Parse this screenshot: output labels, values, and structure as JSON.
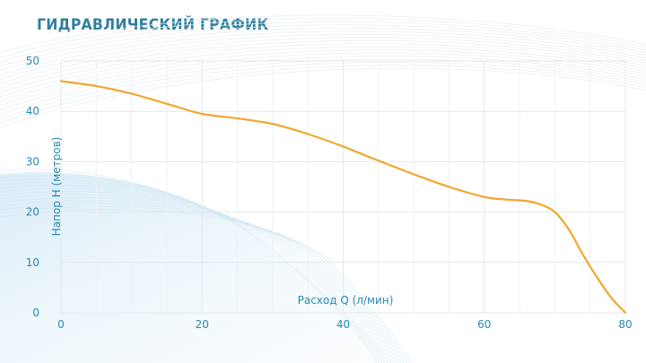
{
  "chart_data": {
    "type": "line",
    "title": "ГИДРАВЛИЧЕСКИЙ ГРАФИК",
    "xlabel": "Расход Q (л/мин)",
    "ylabel": "Напор Н (метров)",
    "xlim": [
      0,
      80
    ],
    "ylim": [
      0,
      50
    ],
    "xticks": [
      0,
      20,
      40,
      60,
      80
    ],
    "yticks": [
      0,
      10,
      20,
      30,
      40,
      50
    ],
    "grid": true,
    "series": [
      {
        "x": [
          0,
          5,
          10,
          15,
          20,
          25,
          30,
          35,
          40,
          45,
          50,
          55,
          60,
          63,
          66,
          68,
          70,
          72,
          74,
          76,
          78,
          80
        ],
        "y": [
          46,
          45,
          43.5,
          41.5,
          39.5,
          38.6,
          37.5,
          35.5,
          33,
          30.2,
          27.5,
          25,
          23,
          22.5,
          22.2,
          21.5,
          20,
          16.5,
          11.5,
          7,
          3,
          0
        ],
        "color": "#f0a830"
      }
    ]
  }
}
